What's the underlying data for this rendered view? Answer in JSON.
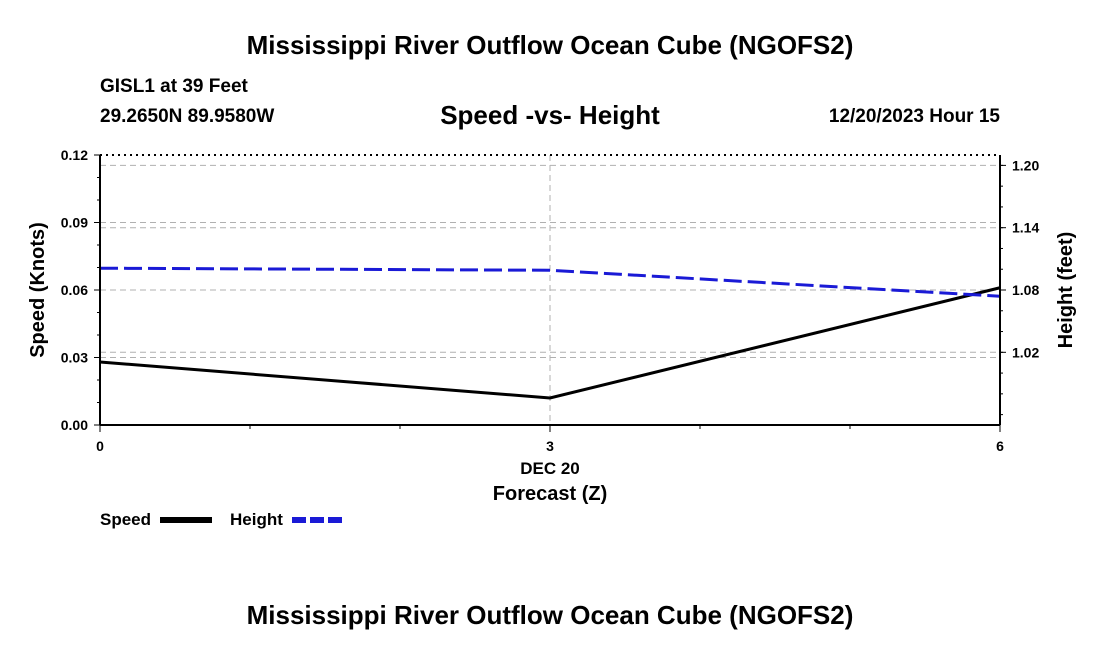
{
  "header": {
    "title": "Mississippi River Outflow Ocean Cube (NGOFS2)",
    "station": "GISL1 at 39 Feet",
    "coords": "29.2650N  89.9580W",
    "datetime": "12/20/2023 Hour 15"
  },
  "footer": {
    "title": "Mississippi River Outflow Ocean Cube (NGOFS2)"
  },
  "legend": {
    "speed_label": "Speed",
    "height_label": "Height"
  },
  "colors": {
    "speed": "#000000",
    "height": "#1a1ad6",
    "grid": "#b0b0b0"
  },
  "chart_data": {
    "type": "line",
    "title": "Speed -vs- Height",
    "xlabel": "Forecast (Z)",
    "xlabel_date": "DEC 20",
    "ylabel": "Speed (Knots)",
    "y2label": "Height (feet)",
    "x": [
      0,
      3,
      6
    ],
    "xlim": [
      0,
      6
    ],
    "xticks": [
      "0",
      "3",
      "6"
    ],
    "ylim": [
      0,
      0.12
    ],
    "yticks": [
      "0.00",
      "0.03",
      "0.06",
      "0.09",
      "0.12"
    ],
    "y2lim": [
      0.95,
      1.21
    ],
    "y2ticks": [
      "1.02",
      "1.08",
      "1.14",
      "1.20"
    ],
    "series": [
      {
        "name": "Speed",
        "axis": "left",
        "style": "solid",
        "values": [
          0.028,
          0.012,
          0.061
        ]
      },
      {
        "name": "Height",
        "axis": "right",
        "style": "dashed",
        "values": [
          1.101,
          1.099,
          1.074
        ]
      }
    ],
    "grid": true
  }
}
